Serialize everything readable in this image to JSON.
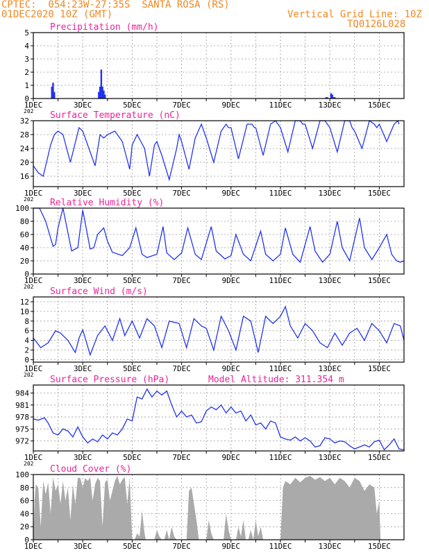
{
  "header": {
    "station_line": "CPTEC:  054:23W-27:35S  SANTA ROSA (RS)",
    "date_line": "01DEC2020 10Z (GMT)",
    "grid_note": "Vertical Grid Line: 10Z",
    "product_code": "TQ0126L028"
  },
  "colors": {
    "header_text": "#ee8822",
    "panel_title": "#ee2299",
    "series_line": "#2233ee",
    "cloud_fill": "#aaaaaa",
    "axis_text": "#000000"
  },
  "x_axis": {
    "tick_labels": [
      "1DEC",
      "3DEC",
      "5DEC",
      "7DEC",
      "9DEC",
      "11DEC",
      "13DEC",
      "15DEC"
    ],
    "year_fragment": "202",
    "start_day": 1,
    "end_day": 16
  },
  "chart_data": [
    {
      "type": "bar",
      "title": "Precipitation (mm/h)",
      "ylim": [
        0,
        5
      ],
      "yticks": [
        0,
        1,
        2,
        3,
        4,
        5
      ],
      "x": [
        1.75,
        1.8,
        1.85,
        3.65,
        3.7,
        3.75,
        3.8,
        3.85,
        3.9,
        12.85,
        12.9,
        13.05,
        13.1,
        13.15,
        13.2
      ],
      "values": [
        0.9,
        1.2,
        0.5,
        0.5,
        0.9,
        2.2,
        0.9,
        0.6,
        0.3,
        0.1,
        0.1,
        0.4,
        0.3,
        0.1,
        0.1
      ]
    },
    {
      "type": "line",
      "title": "Surface Temperature (nC)",
      "ylim": [
        13,
        32
      ],
      "yticks": [
        16,
        20,
        24,
        28,
        32
      ],
      "x": [
        1.0,
        1.2,
        1.4,
        1.7,
        1.85,
        2.0,
        2.2,
        2.5,
        2.85,
        3.0,
        3.2,
        3.5,
        3.7,
        3.85,
        4.0,
        4.3,
        4.6,
        4.9,
        5.0,
        5.2,
        5.5,
        5.7,
        5.9,
        6.0,
        6.2,
        6.5,
        6.8,
        6.9,
        7.0,
        7.3,
        7.55,
        7.8,
        7.9,
        8.0,
        8.3,
        8.6,
        8.8,
        8.9,
        9.0,
        9.3,
        9.65,
        9.85,
        9.95,
        10.0,
        10.3,
        10.6,
        10.8,
        10.9,
        11.0,
        11.3,
        11.6,
        11.8,
        11.9,
        12.0,
        12.3,
        12.6,
        12.8,
        12.9,
        13.0,
        13.3,
        13.6,
        13.8,
        13.9,
        14.0,
        14.3,
        14.6,
        14.8,
        14.9,
        15.0,
        15.3,
        15.6,
        15.75,
        15.8
      ],
      "values": [
        19,
        17,
        16,
        25,
        28,
        29,
        28,
        20,
        30,
        29,
        25,
        19,
        28,
        27,
        28,
        29,
        26,
        18,
        25,
        28,
        24,
        16,
        25,
        26,
        22,
        15,
        24,
        28,
        26,
        18,
        27,
        31,
        29,
        27,
        20,
        29,
        31,
        30,
        30,
        21,
        31,
        31,
        30,
        30,
        22,
        31,
        32,
        31,
        30,
        23,
        32,
        32,
        31,
        31,
        24,
        32,
        32,
        31,
        30,
        23,
        32,
        32,
        30,
        29,
        24,
        32,
        31,
        30,
        31,
        26,
        31,
        32,
        31
      ]
    },
    {
      "type": "line",
      "title": "Relative Humidity (%)",
      "ylim": [
        0,
        100
      ],
      "yticks": [
        0,
        20,
        40,
        60,
        80,
        100
      ],
      "x": [
        1.0,
        1.25,
        1.5,
        1.8,
        1.9,
        2.0,
        2.2,
        2.55,
        2.8,
        3.0,
        3.3,
        3.45,
        3.6,
        3.85,
        4.0,
        4.2,
        4.6,
        4.9,
        5.15,
        5.4,
        5.6,
        6.0,
        6.25,
        6.4,
        6.7,
        7.0,
        7.25,
        7.55,
        7.8,
        8.2,
        8.4,
        8.75,
        9.0,
        9.2,
        9.5,
        9.8,
        10.2,
        10.4,
        10.7,
        11.0,
        11.2,
        11.5,
        11.8,
        12.2,
        12.4,
        12.7,
        13.0,
        13.3,
        13.5,
        13.8,
        14.2,
        14.4,
        14.7,
        15.0,
        15.3,
        15.5,
        15.7,
        15.85,
        16.0
      ],
      "values": [
        100,
        100,
        80,
        42,
        45,
        70,
        100,
        35,
        40,
        97,
        38,
        40,
        60,
        70,
        50,
        33,
        28,
        40,
        70,
        30,
        25,
        30,
        72,
        32,
        22,
        32,
        70,
        30,
        22,
        72,
        35,
        23,
        28,
        60,
        30,
        20,
        65,
        30,
        20,
        30,
        70,
        30,
        18,
        72,
        35,
        18,
        30,
        80,
        40,
        20,
        85,
        40,
        22,
        40,
        60,
        30,
        20,
        18,
        20
      ]
    },
    {
      "type": "line",
      "title": "Surface Wind (m/s)",
      "ylim": [
        -0.5,
        13
      ],
      "yticks": [
        0,
        2,
        4,
        6,
        8,
        10,
        12
      ],
      "x": [
        1.0,
        1.3,
        1.6,
        1.9,
        2.1,
        2.4,
        2.7,
        2.85,
        3.0,
        3.3,
        3.6,
        3.9,
        4.2,
        4.5,
        4.7,
        5.0,
        5.3,
        5.6,
        5.9,
        6.2,
        6.5,
        6.9,
        7.2,
        7.5,
        7.8,
        8.0,
        8.3,
        8.6,
        8.9,
        9.2,
        9.5,
        9.8,
        10.1,
        10.4,
        10.7,
        11.0,
        11.2,
        11.4,
        11.7,
        12.0,
        12.3,
        12.6,
        12.9,
        13.2,
        13.5,
        13.8,
        14.1,
        14.4,
        14.7,
        15.0,
        15.3,
        15.6,
        15.85,
        16.0
      ],
      "values": [
        4.5,
        2.5,
        3.5,
        6.0,
        5.5,
        4.0,
        1.5,
        4.5,
        6.2,
        1.0,
        5.0,
        7.0,
        4.0,
        8.5,
        5.0,
        8.0,
        4.5,
        8.5,
        7.0,
        2.5,
        8.0,
        7.5,
        2.5,
        8.5,
        7.0,
        6.5,
        2.0,
        9.0,
        6.0,
        2.0,
        9.0,
        8.0,
        1.5,
        9.0,
        7.5,
        9.0,
        11.0,
        7.0,
        4.5,
        7.5,
        6.0,
        3.5,
        2.5,
        5.5,
        3.0,
        5.5,
        6.5,
        4.0,
        7.5,
        6.0,
        3.5,
        7.5,
        7.0,
        4.0
      ]
    },
    {
      "type": "line",
      "title": "Surface Pressure (hPa)",
      "annotation": "Model Altitude: 311.354 m",
      "ylim": [
        969.5,
        986
      ],
      "yticks": [
        972,
        975,
        978,
        981,
        984
      ],
      "x": [
        1.0,
        1.2,
        1.45,
        1.6,
        1.8,
        2.0,
        2.2,
        2.4,
        2.6,
        2.8,
        3.0,
        3.2,
        3.4,
        3.6,
        3.8,
        4.0,
        4.2,
        4.4,
        4.6,
        4.8,
        5.0,
        5.2,
        5.4,
        5.6,
        5.8,
        6.0,
        6.2,
        6.4,
        6.6,
        6.8,
        7.0,
        7.2,
        7.4,
        7.6,
        7.8,
        8.0,
        8.2,
        8.4,
        8.6,
        8.8,
        9.0,
        9.2,
        9.4,
        9.6,
        9.8,
        10.0,
        10.2,
        10.4,
        10.6,
        10.8,
        11.0,
        11.2,
        11.4,
        11.6,
        11.8,
        12.0,
        12.2,
        12.4,
        12.6,
        12.8,
        13.0,
        13.2,
        13.4,
        13.6,
        13.8,
        14.0,
        14.2,
        14.4,
        14.6,
        14.8,
        15.0,
        15.2,
        15.4,
        15.6,
        15.8,
        16.0
      ],
      "values": [
        977.5,
        977.2,
        977.8,
        976.5,
        974.0,
        973.5,
        975.0,
        974.5,
        973.0,
        975.5,
        973.0,
        971.5,
        972.5,
        971.8,
        973.5,
        972.5,
        974.0,
        973.5,
        975.0,
        977.5,
        977.0,
        983.0,
        982.5,
        985.0,
        983.0,
        984.5,
        983.5,
        984.5,
        981.0,
        978.0,
        979.5,
        978.0,
        978.5,
        976.5,
        976.8,
        979.5,
        980.5,
        979.8,
        981.0,
        979.0,
        980.5,
        979.0,
        979.5,
        977.0,
        978.5,
        976.0,
        976.5,
        975.0,
        977.0,
        976.5,
        973.0,
        972.5,
        972.2,
        973.0,
        972.0,
        972.8,
        972.0,
        970.5,
        970.8,
        972.8,
        972.5,
        971.5,
        972.0,
        971.8,
        970.8,
        970.0,
        970.5,
        971.0,
        970.5,
        971.8,
        972.2,
        969.8,
        971.0,
        972.5,
        970.0,
        969.8
      ]
    },
    {
      "type": "area",
      "title": "Cloud Cover (%)",
      "ylim": [
        0,
        100
      ],
      "yticks": [
        0,
        20,
        40,
        60,
        80,
        100
      ],
      "x": [
        1.0,
        1.05,
        1.1,
        1.2,
        1.3,
        1.4,
        1.5,
        1.6,
        1.7,
        1.8,
        1.9,
        2.0,
        2.1,
        2.2,
        2.3,
        2.4,
        2.5,
        2.6,
        2.7,
        2.8,
        2.9,
        3.0,
        3.1,
        3.2,
        3.3,
        3.4,
        3.5,
        3.6,
        3.7,
        3.8,
        3.9,
        4.0,
        4.1,
        4.2,
        4.3,
        4.4,
        4.5,
        4.6,
        4.7,
        4.8,
        4.9,
        5.0,
        5.1,
        5.2,
        5.3,
        5.4,
        5.5,
        5.55,
        5.6,
        5.9,
        6.0,
        6.1,
        6.2,
        6.3,
        6.4,
        6.5,
        6.6,
        6.7,
        6.8,
        7.0,
        7.2,
        7.3,
        7.4,
        7.5,
        7.6,
        7.7,
        7.8,
        7.9,
        8.0,
        8.1,
        8.2,
        8.3,
        8.4,
        8.5,
        8.7,
        8.8,
        8.9,
        9.0,
        9.1,
        9.2,
        9.3,
        9.4,
        9.5,
        9.6,
        9.7,
        9.8,
        9.9,
        10.0,
        10.1,
        10.2,
        10.3,
        10.4,
        10.5,
        10.6,
        10.7,
        10.8,
        10.9,
        11.0,
        11.1,
        11.2,
        11.4,
        11.6,
        11.8,
        12.0,
        12.2,
        12.4,
        12.6,
        12.8,
        13.0,
        13.2,
        13.4,
        13.6,
        13.8,
        14.0,
        14.2,
        14.4,
        14.6,
        14.8,
        14.9,
        15.0,
        15.05,
        15.1,
        16.0
      ],
      "values": [
        0,
        60,
        85,
        80,
        20,
        90,
        70,
        88,
        40,
        96,
        75,
        85,
        55,
        90,
        60,
        80,
        30,
        85,
        55,
        95,
        95,
        80,
        95,
        90,
        96,
        60,
        85,
        95,
        90,
        20,
        88,
        92,
        60,
        75,
        90,
        98,
        85,
        92,
        96,
        55,
        95,
        0,
        0,
        10,
        5,
        45,
        10,
        0,
        0,
        0,
        15,
        5,
        0,
        0,
        15,
        0,
        20,
        5,
        0,
        0,
        0,
        75,
        80,
        55,
        30,
        0,
        0,
        0,
        0,
        30,
        10,
        0,
        0,
        0,
        0,
        40,
        15,
        0,
        0,
        0,
        20,
        5,
        30,
        0,
        0,
        15,
        0,
        30,
        5,
        20,
        0,
        0,
        0,
        0,
        0,
        0,
        0,
        0,
        80,
        90,
        85,
        95,
        88,
        95,
        98,
        92,
        96,
        90,
        95,
        85,
        95,
        90,
        80,
        95,
        90,
        75,
        85,
        80,
        40,
        60,
        0,
        0,
        0
      ]
    }
  ]
}
